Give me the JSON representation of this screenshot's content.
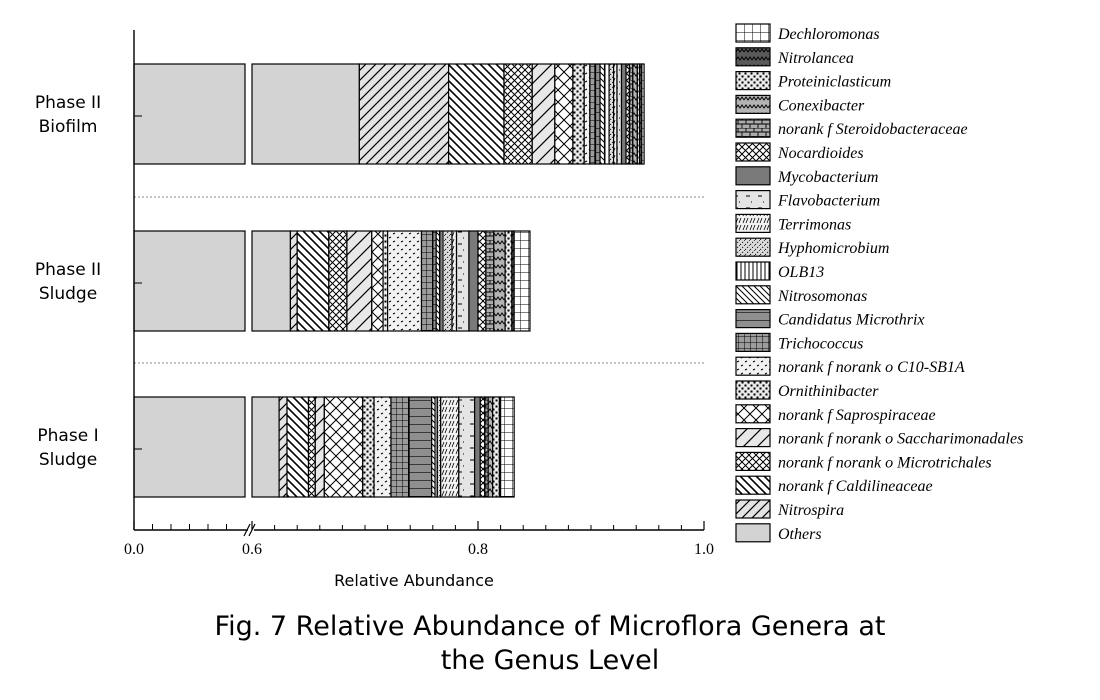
{
  "caption": {
    "line1": "Fig. 7 Relative Abundance of Microflora Genera at",
    "line2": "the Genus Level"
  },
  "chart_data": {
    "type": "bar",
    "orientation": "horizontal",
    "stacked": true,
    "broken_axis": {
      "break_from": 0.0,
      "break_to": 0.6
    },
    "xlabel": "Relative Abundance",
    "ylabel": "",
    "xlim": [
      0.0,
      1.0
    ],
    "ticks": [
      {
        "value": 0.0,
        "label": "0.0"
      },
      {
        "value": 0.6,
        "label": "0.6"
      },
      {
        "value": 0.8,
        "label": "0.8"
      },
      {
        "value": 1.0,
        "label": "1.0"
      }
    ],
    "categories": [
      {
        "id": "phase2-biofilm",
        "lines": [
          "Phase II",
          "Biofilm"
        ]
      },
      {
        "id": "phase2-sludge",
        "lines": [
          "Phase II",
          "Sludge"
        ]
      },
      {
        "id": "phase1-sludge",
        "lines": [
          "Phase I",
          "Sludge"
        ]
      }
    ],
    "legend_position": "right",
    "series": [
      {
        "name": "Others",
        "pattern": "solid",
        "values": [
          0.695,
          0.634,
          0.624
        ]
      },
      {
        "name": "Nitrospira",
        "pattern": "diag-fwd",
        "values": [
          0.079,
          0.006,
          0.007
        ]
      },
      {
        "name": "norank f Caldilineaceae",
        "pattern": "diag-back",
        "values": [
          0.049,
          0.028,
          0.019
        ]
      },
      {
        "name": "norank f norank o Microtrichales",
        "pattern": "cross-small",
        "values": [
          0.025,
          0.016,
          0.006
        ]
      },
      {
        "name": "norank f norank o Saccharimonadales",
        "pattern": "diag-fwd-wide",
        "values": [
          0.02,
          0.022,
          0.008
        ]
      },
      {
        "name": "norank f Saprospiraceae",
        "pattern": "cross",
        "values": [
          0.016,
          0.01,
          0.034
        ]
      },
      {
        "name": "Ornithinibacter",
        "pattern": "dots",
        "values": [
          0.01,
          0.004,
          0.01
        ]
      },
      {
        "name": "norank f norank o C10-SB1A",
        "pattern": "dashes-small",
        "values": [
          0.005,
          0.03,
          0.015
        ]
      },
      {
        "name": "Trichococcus",
        "pattern": "grid-dark",
        "values": [
          0.005,
          0.01,
          0.016
        ]
      },
      {
        "name": "Candidatus Microthrix",
        "pattern": "hlines",
        "values": [
          0.004,
          0.003,
          0.02
        ]
      },
      {
        "name": "Nitrosomonas",
        "pattern": "diag-back-thin",
        "values": [
          0.004,
          0.003,
          0.003
        ]
      },
      {
        "name": "OLB13",
        "pattern": "vlines",
        "values": [
          0.004,
          0.003,
          0.002
        ]
      },
      {
        "name": "Hyphomicrobium",
        "pattern": "dashes-dense",
        "values": [
          0.004,
          0.008,
          0.003
        ]
      },
      {
        "name": "Terrimonas",
        "pattern": "diag-dashes",
        "values": [
          0.003,
          0.004,
          0.016
        ]
      },
      {
        "name": "Flavobacterium",
        "pattern": "dashes-sparse",
        "values": [
          0.004,
          0.011,
          0.014
        ]
      },
      {
        "name": "Mycobacterium",
        "pattern": "solid-dark",
        "values": [
          0.004,
          0.008,
          0.005
        ]
      },
      {
        "name": "Nocardioides",
        "pattern": "cross-small",
        "values": [
          0.003,
          0.007,
          0.004
        ]
      },
      {
        "name": "norank f Steroidobacteraceae",
        "pattern": "brick",
        "values": [
          0.003,
          0.007,
          0.003
        ]
      },
      {
        "name": "Conexibacter",
        "pattern": "zigzag",
        "values": [
          0.004,
          0.01,
          0.004
        ]
      },
      {
        "name": "Proteiniclasticum",
        "pattern": "dots",
        "values": [
          0.002,
          0.006,
          0.006
        ]
      },
      {
        "name": "Nitrolancea",
        "pattern": "zigzag-dark",
        "values": [
          0.002,
          0.002,
          0.001
        ]
      },
      {
        "name": "Dechloromonas",
        "pattern": "grid",
        "values": [
          0.002,
          0.014,
          0.012
        ]
      }
    ]
  }
}
